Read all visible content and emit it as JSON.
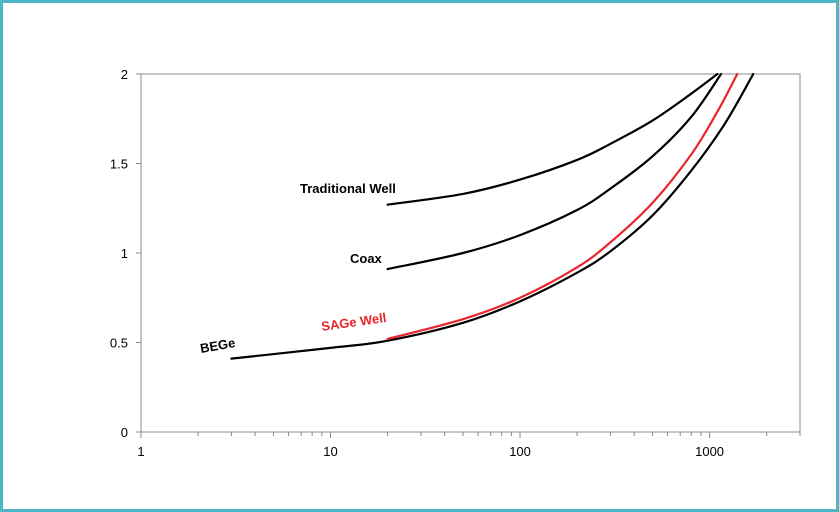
{
  "chart_data": {
    "type": "line",
    "title": "",
    "xlabel": "",
    "ylabel": "",
    "xscale": "log",
    "xlim": [
      1,
      3000
    ],
    "ylim": [
      0,
      2
    ],
    "xticks": [
      1,
      10,
      100,
      1000
    ],
    "xtick_labels": [
      "1",
      "10",
      "100",
      "1000"
    ],
    "yticks": [
      0,
      0.5,
      1,
      1.5,
      2
    ],
    "ytick_labels": [
      "0",
      "0.5",
      "1",
      "1.5",
      "2"
    ],
    "grid": false,
    "legend": "none",
    "series": [
      {
        "name": "Traditional Well",
        "color": "#000000",
        "x": [
          20,
          50,
          100,
          200,
          300,
          500,
          800,
          1100
        ],
        "y": [
          1.27,
          1.33,
          1.41,
          1.52,
          1.61,
          1.74,
          1.89,
          2.0
        ]
      },
      {
        "name": "Coax",
        "color": "#000000",
        "x": [
          20,
          50,
          100,
          200,
          300,
          500,
          800,
          1150
        ],
        "y": [
          0.91,
          1.0,
          1.1,
          1.24,
          1.36,
          1.54,
          1.76,
          2.0
        ]
      },
      {
        "name": "SAGe Well",
        "color": "#e8262b",
        "x": [
          20,
          50,
          100,
          200,
          300,
          500,
          800,
          1100,
          1400
        ],
        "y": [
          0.52,
          0.63,
          0.75,
          0.92,
          1.06,
          1.28,
          1.55,
          1.79,
          2.0
        ]
      },
      {
        "name": "BEGe",
        "color": "#000000",
        "x": [
          3,
          10,
          20,
          50,
          100,
          200,
          300,
          500,
          800,
          1200,
          1700
        ],
        "y": [
          0.41,
          0.47,
          0.51,
          0.61,
          0.73,
          0.89,
          1.01,
          1.21,
          1.46,
          1.72,
          2.0
        ]
      }
    ],
    "annotations": [
      {
        "text": "Traditional Well",
        "color": "#000000"
      },
      {
        "text": "Coax",
        "color": "#000000"
      },
      {
        "text": "SAGe Well",
        "color": "#e8262b"
      },
      {
        "text": "BEGe",
        "color": "#000000"
      }
    ]
  }
}
